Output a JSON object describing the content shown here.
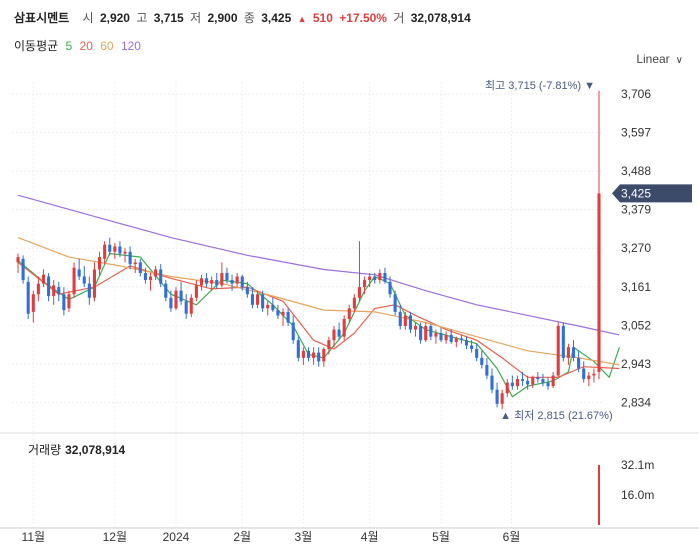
{
  "header": {
    "name": "삼표시멘트",
    "open_label": "시",
    "open": "2,920",
    "high_label": "고",
    "high": "3,715",
    "low_label": "저",
    "low": "2,900",
    "close_label": "종",
    "close": "3,425",
    "change_arrow": "▲",
    "change": "510",
    "change_pct": "+17.50%",
    "volume_label": "거",
    "volume": "32,078,914"
  },
  "ma_legend": {
    "title": "이동평균",
    "items": [
      {
        "label": "5",
        "color": "#3cab52"
      },
      {
        "label": "20",
        "color": "#e8614c"
      },
      {
        "label": "60",
        "color": "#e8a55e"
      },
      {
        "label": "120",
        "color": "#9b6fe0"
      }
    ]
  },
  "scale_selector": "Linear",
  "colors": {
    "up": "#e03e3e",
    "down": "#2f6fd6",
    "price_tag": "#3d4b6b"
  },
  "chart_data": {
    "type": "candlestick",
    "y_ticks": [
      "3,706",
      "3,597",
      "3,488",
      "3,379",
      "3,270",
      "3,161",
      "3,052",
      "2,943",
      "2,834"
    ],
    "ylim": [
      2790,
      3740
    ],
    "x_ticks": [
      "11월",
      "12월",
      "2024",
      "2월",
      "3월",
      "4월",
      "5월",
      "6월"
    ],
    "current_price_label": "3,425",
    "max_annotation": {
      "label": "최고",
      "value": "3,715",
      "pct": "(-7.81%)",
      "marker": "▼"
    },
    "min_annotation": {
      "label": "최저",
      "value": "2,815",
      "pct": "(21.67%)",
      "marker": "▲"
    },
    "ohlc": [
      [
        3230,
        3255,
        3200,
        3245
      ],
      [
        3240,
        3250,
        3170,
        3180
      ],
      [
        3175,
        3190,
        3070,
        3085
      ],
      [
        3090,
        3150,
        3060,
        3140
      ],
      [
        3140,
        3190,
        3120,
        3170
      ],
      [
        3170,
        3210,
        3160,
        3195
      ],
      [
        3190,
        3200,
        3120,
        3135
      ],
      [
        3135,
        3180,
        3110,
        3165
      ],
      [
        3160,
        3175,
        3120,
        3140
      ],
      [
        3140,
        3160,
        3080,
        3095
      ],
      [
        3100,
        3150,
        3090,
        3140
      ],
      [
        3140,
        3230,
        3130,
        3215
      ],
      [
        3210,
        3240,
        3180,
        3190
      ],
      [
        3190,
        3220,
        3160,
        3170
      ],
      [
        3170,
        3190,
        3110,
        3130
      ],
      [
        3130,
        3230,
        3120,
        3210
      ],
      [
        3210,
        3260,
        3190,
        3245
      ],
      [
        3240,
        3290,
        3225,
        3280
      ],
      [
        3280,
        3300,
        3250,
        3260
      ],
      [
        3260,
        3285,
        3240,
        3275
      ],
      [
        3275,
        3290,
        3245,
        3255
      ],
      [
        3255,
        3270,
        3230,
        3260
      ],
      [
        3260,
        3275,
        3210,
        3225
      ],
      [
        3225,
        3240,
        3200,
        3230
      ],
      [
        3230,
        3240,
        3190,
        3200
      ],
      [
        3200,
        3215,
        3170,
        3180
      ],
      [
        3180,
        3200,
        3150,
        3190
      ],
      [
        3190,
        3220,
        3180,
        3210
      ],
      [
        3210,
        3225,
        3160,
        3170
      ],
      [
        3170,
        3180,
        3120,
        3130
      ],
      [
        3130,
        3150,
        3090,
        3100
      ],
      [
        3100,
        3160,
        3095,
        3150
      ],
      [
        3150,
        3175,
        3110,
        3120
      ],
      [
        3120,
        3140,
        3070,
        3085
      ],
      [
        3085,
        3140,
        3075,
        3130
      ],
      [
        3130,
        3180,
        3120,
        3165
      ],
      [
        3165,
        3195,
        3150,
        3185
      ],
      [
        3185,
        3200,
        3160,
        3170
      ],
      [
        3170,
        3190,
        3150,
        3180
      ],
      [
        3180,
        3200,
        3155,
        3165
      ],
      [
        3165,
        3230,
        3160,
        3200
      ],
      [
        3200,
        3215,
        3170,
        3180
      ],
      [
        3180,
        3195,
        3150,
        3170
      ],
      [
        3170,
        3200,
        3160,
        3190
      ],
      [
        3190,
        3195,
        3150,
        3160
      ],
      [
        3160,
        3175,
        3130,
        3140
      ],
      [
        3140,
        3160,
        3100,
        3110
      ],
      [
        3110,
        3150,
        3100,
        3140
      ],
      [
        3140,
        3150,
        3090,
        3100
      ],
      [
        3100,
        3120,
        3080,
        3110
      ],
      [
        3110,
        3130,
        3090,
        3095
      ],
      [
        3095,
        3110,
        3070,
        3080
      ],
      [
        3080,
        3100,
        3050,
        3090
      ],
      [
        3090,
        3100,
        3050,
        3060
      ],
      [
        3060,
        3080,
        3000,
        3010
      ],
      [
        3010,
        3020,
        2950,
        2960
      ],
      [
        2960,
        2990,
        2940,
        2980
      ],
      [
        2980,
        2990,
        2950,
        2960
      ],
      [
        2960,
        2990,
        2940,
        2975
      ],
      [
        2975,
        2990,
        2935,
        2950
      ],
      [
        2950,
        2990,
        2935,
        2985
      ],
      [
        2985,
        3020,
        2970,
        3010
      ],
      [
        3010,
        3050,
        2990,
        3040
      ],
      [
        3040,
        3060,
        3010,
        3020
      ],
      [
        3020,
        3080,
        3010,
        3070
      ],
      [
        3070,
        3110,
        3060,
        3100
      ],
      [
        3100,
        3140,
        3090,
        3130
      ],
      [
        3130,
        3290,
        3120,
        3160
      ],
      [
        3160,
        3190,
        3140,
        3180
      ],
      [
        3180,
        3200,
        3160,
        3190
      ],
      [
        3190,
        3200,
        3170,
        3180
      ],
      [
        3180,
        3210,
        3170,
        3200
      ],
      [
        3200,
        3215,
        3170,
        3175
      ],
      [
        3175,
        3190,
        3130,
        3140
      ],
      [
        3140,
        3150,
        3080,
        3090
      ],
      [
        3090,
        3110,
        3040,
        3050
      ],
      [
        3050,
        3090,
        3040,
        3080
      ],
      [
        3080,
        3090,
        3030,
        3040
      ],
      [
        3040,
        3060,
        3020,
        3050
      ],
      [
        3050,
        3060,
        3000,
        3010
      ],
      [
        3010,
        3060,
        3005,
        3050
      ],
      [
        3050,
        3055,
        3010,
        3020
      ],
      [
        3020,
        3040,
        3000,
        3030
      ],
      [
        3030,
        3045,
        3005,
        3010
      ],
      [
        3010,
        3035,
        3000,
        3025
      ],
      [
        3025,
        3040,
        3000,
        3005
      ],
      [
        3005,
        3020,
        2990,
        3015
      ],
      [
        3015,
        3025,
        3000,
        3010
      ],
      [
        3010,
        3020,
        2985,
        2995
      ],
      [
        2995,
        3010,
        2975,
        2985
      ],
      [
        2985,
        3000,
        2950,
        2960
      ],
      [
        2960,
        2980,
        2930,
        2940
      ],
      [
        2940,
        2960,
        2900,
        2910
      ],
      [
        2910,
        2930,
        2860,
        2870
      ],
      [
        2870,
        2890,
        2820,
        2830
      ],
      [
        2830,
        2870,
        2815,
        2860
      ],
      [
        2860,
        2900,
        2850,
        2890
      ],
      [
        2890,
        2910,
        2870,
        2880
      ],
      [
        2880,
        2910,
        2870,
        2900
      ],
      [
        2900,
        2920,
        2880,
        2895
      ],
      [
        2895,
        2910,
        2870,
        2885
      ],
      [
        2885,
        2910,
        2875,
        2905
      ],
      [
        2905,
        2920,
        2890,
        2900
      ],
      [
        2900,
        2915,
        2880,
        2890
      ],
      [
        2890,
        2905,
        2870,
        2880
      ],
      [
        2880,
        2920,
        2875,
        2910
      ],
      [
        2910,
        3060,
        2905,
        3050
      ],
      [
        3050,
        3060,
        2950,
        2960
      ],
      [
        2960,
        3000,
        2940,
        2990
      ],
      [
        2990,
        3010,
        2950,
        2960
      ],
      [
        2960,
        2980,
        2920,
        2930
      ],
      [
        2930,
        2950,
        2890,
        2900
      ],
      [
        2900,
        2920,
        2880,
        2910
      ],
      [
        2910,
        2930,
        2890,
        2915
      ],
      [
        2920,
        3715,
        2900,
        3425
      ]
    ],
    "ma": {
      "ma5": [
        [
          0,
          3235
        ],
        [
          5,
          3175
        ],
        [
          10,
          3125
        ],
        [
          15,
          3160
        ],
        [
          18,
          3255
        ],
        [
          24,
          3245
        ],
        [
          30,
          3140
        ],
        [
          35,
          3110
        ],
        [
          40,
          3180
        ],
        [
          45,
          3170
        ],
        [
          50,
          3110
        ],
        [
          54,
          3050
        ],
        [
          57,
          2970
        ],
        [
          60,
          2960
        ],
        [
          64,
          3030
        ],
        [
          68,
          3150
        ],
        [
          70,
          3190
        ],
        [
          73,
          3170
        ],
        [
          76,
          3080
        ],
        [
          80,
          3040
        ],
        [
          85,
          3020
        ],
        [
          90,
          3000
        ],
        [
          94,
          2930
        ],
        [
          97,
          2850
        ],
        [
          100,
          2880
        ],
        [
          105,
          2895
        ],
        [
          108,
          2920
        ],
        [
          109,
          2990
        ],
        [
          113,
          2950
        ],
        [
          116,
          2905
        ],
        [
          118,
          2990
        ]
      ],
      "ma20": [
        [
          0,
          3230
        ],
        [
          8,
          3140
        ],
        [
          15,
          3160
        ],
        [
          22,
          3220
        ],
        [
          30,
          3185
        ],
        [
          38,
          3155
        ],
        [
          45,
          3160
        ],
        [
          52,
          3120
        ],
        [
          58,
          3010
        ],
        [
          62,
          2985
        ],
        [
          66,
          3030
        ],
        [
          70,
          3100
        ],
        [
          74,
          3110
        ],
        [
          78,
          3080
        ],
        [
          84,
          3040
        ],
        [
          90,
          3010
        ],
        [
          95,
          2960
        ],
        [
          100,
          2905
        ],
        [
          106,
          2905
        ],
        [
          111,
          2935
        ],
        [
          118,
          2930
        ]
      ],
      "ma60": [
        [
          0,
          3300
        ],
        [
          10,
          3245
        ],
        [
          20,
          3220
        ],
        [
          30,
          3190
        ],
        [
          40,
          3170
        ],
        [
          50,
          3135
        ],
        [
          60,
          3095
        ],
        [
          70,
          3090
        ],
        [
          80,
          3060
        ],
        [
          90,
          3020
        ],
        [
          100,
          2980
        ],
        [
          110,
          2960
        ],
        [
          118,
          2940
        ]
      ],
      "ma120": [
        [
          0,
          3420
        ],
        [
          15,
          3360
        ],
        [
          30,
          3300
        ],
        [
          45,
          3250
        ],
        [
          60,
          3210
        ],
        [
          70,
          3195
        ],
        [
          80,
          3150
        ],
        [
          90,
          3110
        ],
        [
          100,
          3080
        ],
        [
          110,
          3050
        ],
        [
          118,
          3025
        ]
      ]
    },
    "volume": {
      "title": "거래량",
      "value": "32,078,914",
      "ticks": [
        "32.1m",
        "16.0m"
      ],
      "max_m": 32.1,
      "last_bar_m": 32.1
    }
  }
}
